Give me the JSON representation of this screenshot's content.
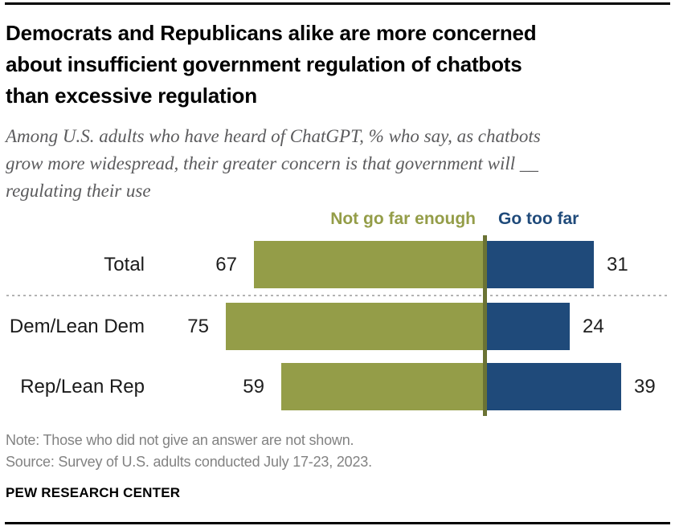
{
  "header": {
    "title": "Democrats and Republicans alike are more concerned\nabout insufficient government regulation of chatbots\nthan excessive regulation",
    "subtitle": "Among U.S. adults who have heard of ChatGPT, % who say, as chatbots\ngrow more widespread, their greater concern is that government will __\nregulating their use"
  },
  "chart_data": {
    "type": "diverging_bar",
    "categories": [
      "Total",
      "Dem/Lean Dem",
      "Rep/Lean Rep"
    ],
    "series": [
      {
        "name": "Not go far enough",
        "side": "left",
        "color": "#949d48",
        "values": [
          67,
          75,
          59
        ]
      },
      {
        "name": "Go too far",
        "side": "right",
        "color": "#1f4a7a",
        "values": [
          31,
          24,
          39
        ]
      }
    ],
    "unit": "percent",
    "legend_position": "top",
    "grid": false,
    "axis_line_color": "#6b7334",
    "separator_color": "#b3b3b3",
    "separator_after_category": "Total"
  },
  "footer": {
    "note": "Note: Those who did not give an answer are not shown.",
    "source": "Source: Survey of U.S. adults conducted July 17-23, 2023.",
    "brand": "PEW RESEARCH CENTER"
  }
}
